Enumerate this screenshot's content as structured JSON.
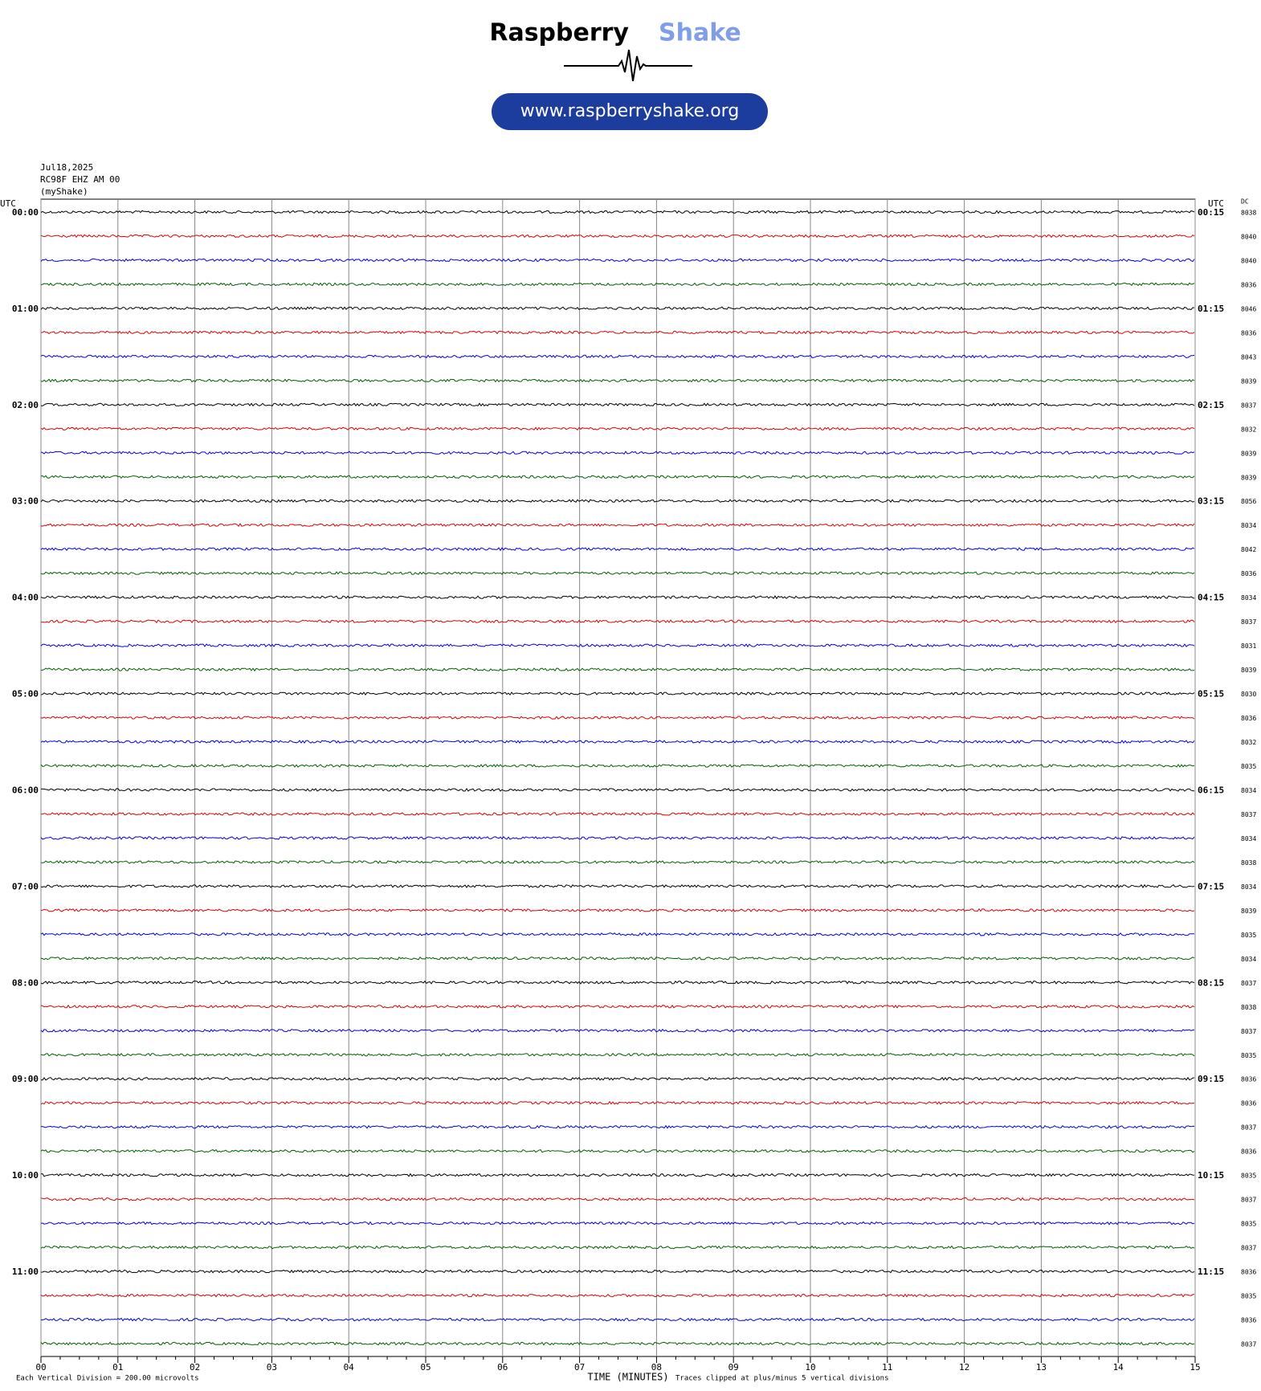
{
  "header": {
    "brand": "Raspberry",
    "brand_accent": "Shake",
    "url": "www.raspberryshake.org"
  },
  "station": {
    "date": "Jul18,2025",
    "channel": "RC98F EHZ AM 00",
    "network": "(myShake)"
  },
  "left_axis": {
    "label": "UTC",
    "hours": [
      "00:00",
      "01:00",
      "02:00",
      "03:00",
      "04:00",
      "05:00",
      "06:00",
      "07:00",
      "08:00",
      "09:00",
      "10:00",
      "11:00"
    ]
  },
  "right_axis": {
    "label": "UTC",
    "hours": [
      "00:15",
      "01:15",
      "02:15",
      "03:15",
      "04:15",
      "05:15",
      "06:15",
      "07:15",
      "08:15",
      "09:15",
      "10:15",
      "11:15"
    ]
  },
  "dc_label": "DC",
  "dc_values": [
    8038,
    8040,
    8040,
    8036,
    8046,
    8036,
    8043,
    8039,
    8037,
    8032,
    8039,
    8039,
    8056,
    8034,
    8042,
    8036,
    8034,
    8037,
    8031,
    8039,
    8030,
    8036,
    8032,
    8035,
    8034,
    8037,
    8034,
    8038,
    8034,
    8039,
    8035,
    8034,
    8037,
    8038,
    8037,
    8035,
    8036,
    8036,
    8037,
    8036,
    8035,
    8037,
    8035,
    8037,
    8036,
    8035,
    8036,
    8037
  ],
  "x_axis": {
    "ticks": [
      "00",
      "01",
      "02",
      "03",
      "04",
      "05",
      "06",
      "07",
      "08",
      "09",
      "10",
      "11",
      "12",
      "13",
      "14",
      "15"
    ],
    "label": "TIME (MINUTES)"
  },
  "footer": {
    "scale": "Each Vertical Division =  200.00 microvolts",
    "clip": "Traces clipped at plus/minus 5 vertical divisions"
  },
  "trace_colors": [
    "#000000",
    "#e00000",
    "#0000e0",
    "#006000"
  ]
}
